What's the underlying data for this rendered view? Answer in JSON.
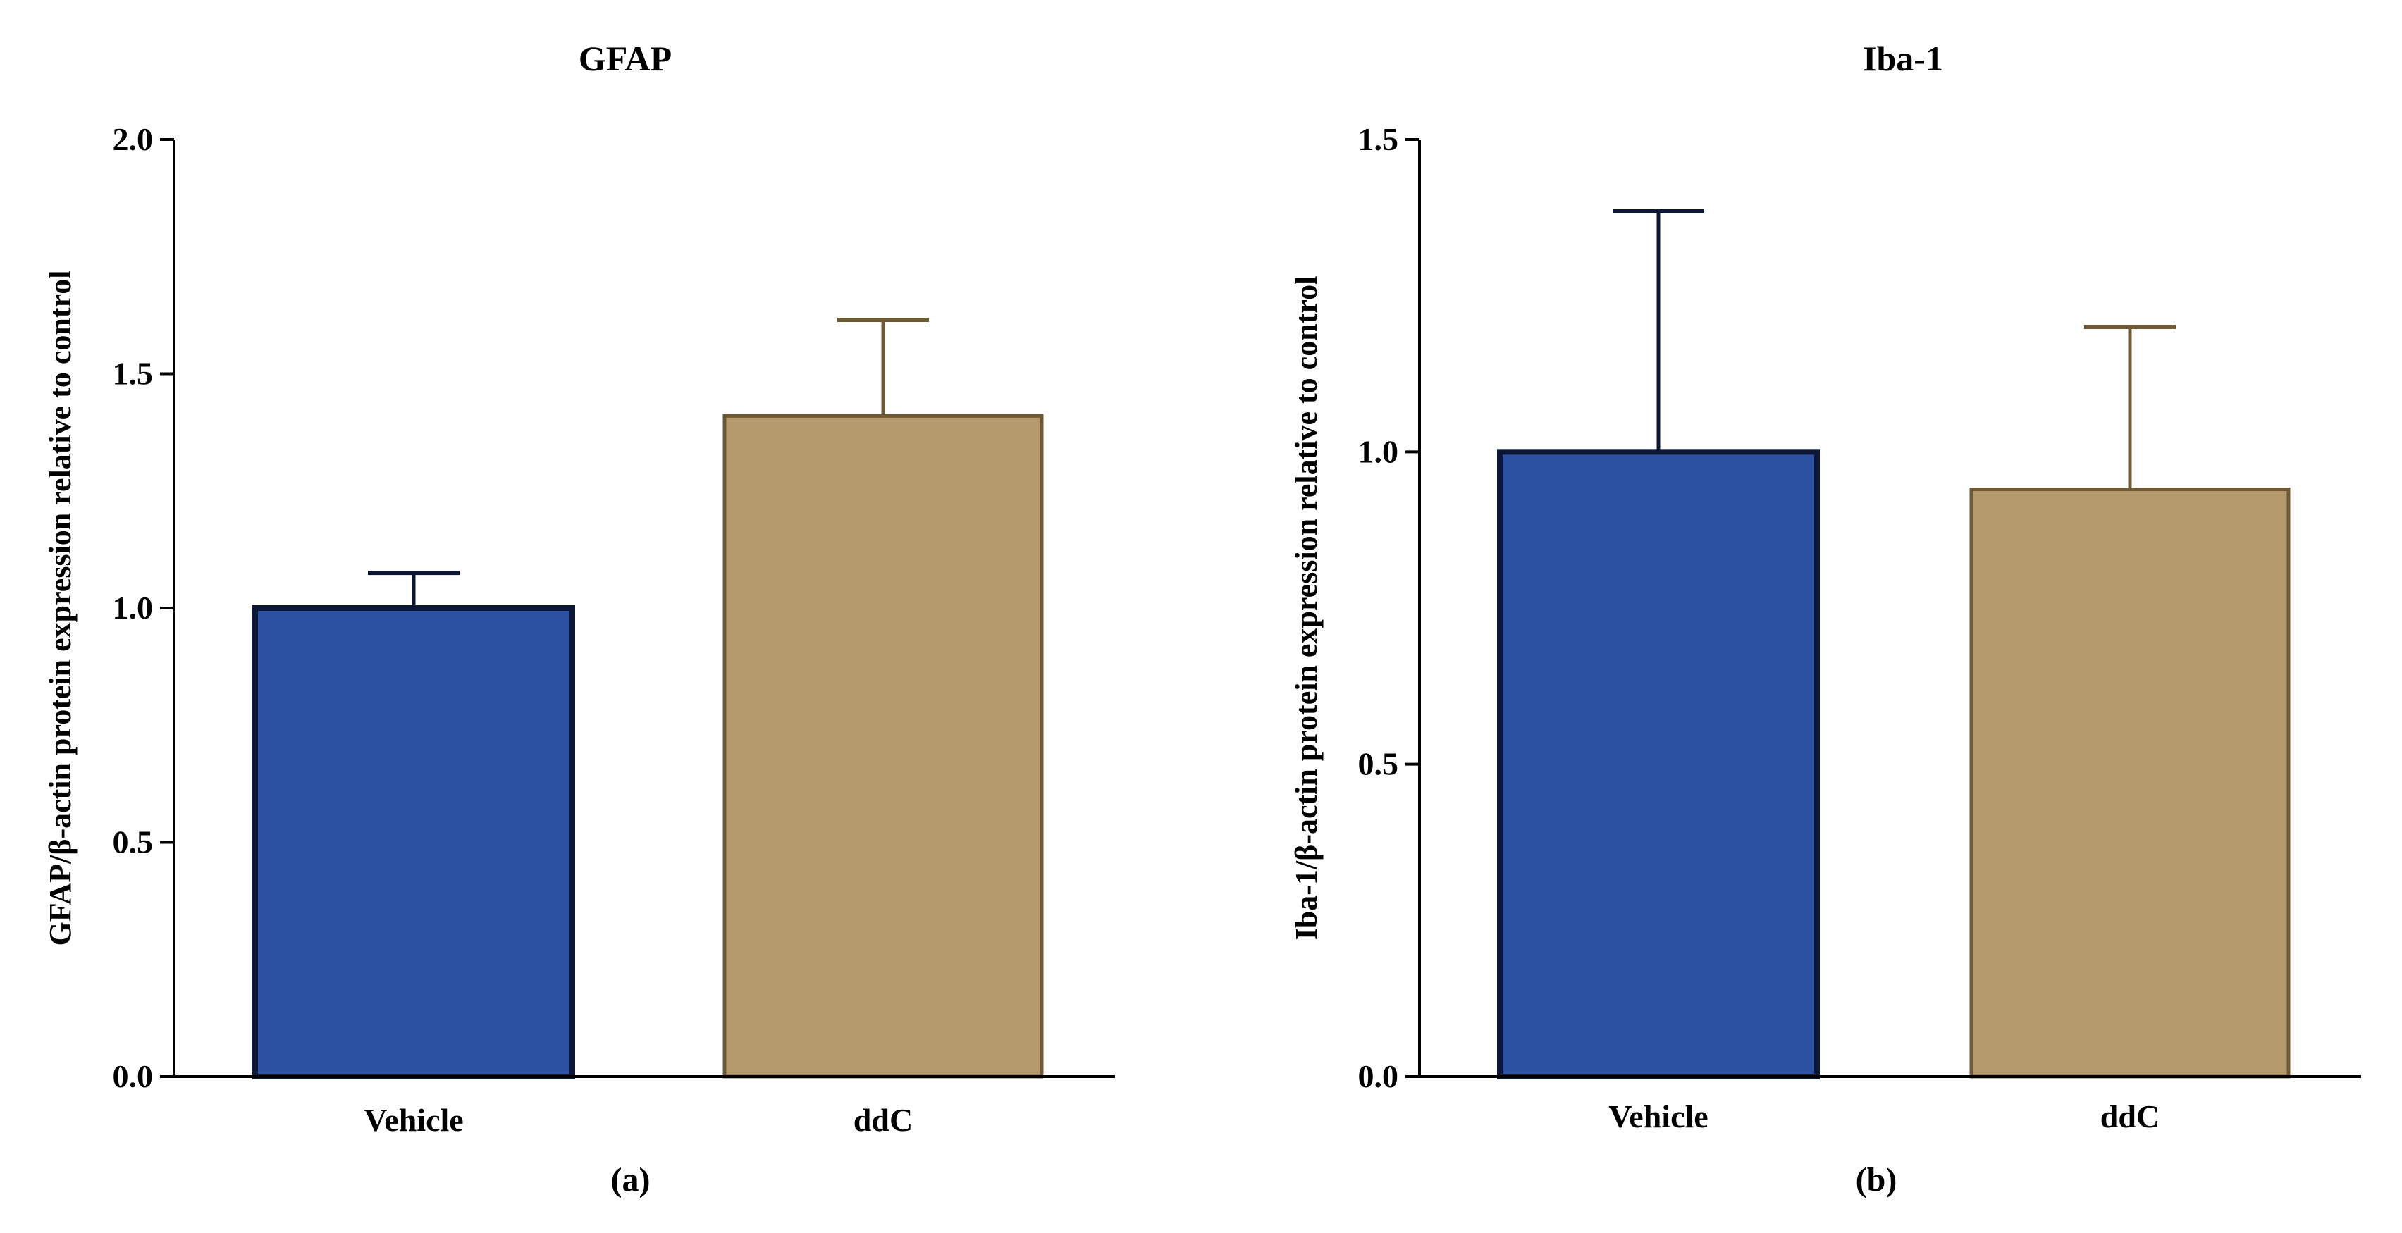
{
  "chart_data": [
    {
      "type": "bar",
      "title": "GFAP",
      "ylabel": "GFAP/β-actin protein expression relative to control",
      "xlabel": "",
      "panel_label": "(a)",
      "categories": [
        "Vehicle",
        "ddC"
      ],
      "values": [
        1.0,
        1.41
      ],
      "errors": [
        0.075,
        0.205
      ],
      "colors": [
        "#2c50a2",
        "#b59a6e"
      ],
      "edge_colors": [
        "#0c1736",
        "#6f5a36"
      ],
      "ylim": [
        0,
        2.0
      ],
      "yticks": [
        0.0,
        0.5,
        1.0,
        1.5,
        2.0
      ],
      "ytick_labels": [
        "0.0",
        "0.5",
        "1.0",
        "1.5",
        "2.0"
      ],
      "grid": false
    },
    {
      "type": "bar",
      "title": "Iba-1",
      "ylabel": "Iba-1/β-actin protein expression relative to control",
      "xlabel": "",
      "panel_label": "(b)",
      "categories": [
        "Vehicle",
        "ddC"
      ],
      "values": [
        1.0,
        0.94
      ],
      "errors": [
        0.385,
        0.26
      ],
      "colors": [
        "#2c50a2",
        "#b59a6e"
      ],
      "edge_colors": [
        "#0c1736",
        "#6f5a36"
      ],
      "ylim": [
        0,
        1.5
      ],
      "yticks": [
        0.0,
        0.5,
        1.0,
        1.5
      ],
      "ytick_labels": [
        "0.0",
        "0.5",
        "1.0",
        "1.5"
      ],
      "grid": false
    }
  ]
}
